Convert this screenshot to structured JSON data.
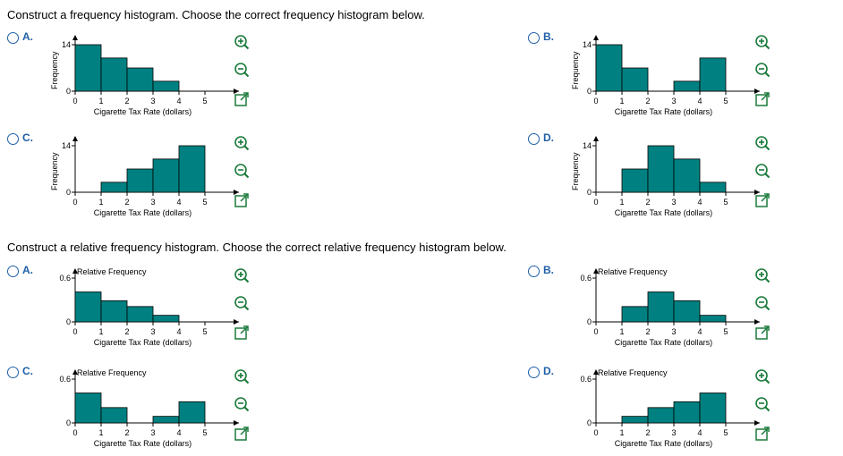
{
  "q1": {
    "prompt": "Construct a frequency histogram. Choose the correct frequency histogram below.",
    "options": [
      {
        "letter": "A.",
        "values": [
          14,
          10,
          7,
          3,
          0
        ]
      },
      {
        "letter": "B.",
        "values": [
          14,
          7,
          0,
          3,
          10
        ]
      },
      {
        "letter": "C.",
        "values": [
          0,
          3,
          7,
          10,
          14
        ]
      },
      {
        "letter": "D.",
        "values": [
          0,
          7,
          14,
          10,
          3
        ]
      }
    ],
    "y_label": "Frequency",
    "y_tick_top": "14",
    "y_tick_bottom": "0"
  },
  "q2": {
    "prompt": "Construct a relative frequency histogram. Choose the correct relative frequency histogram below.",
    "options": [
      {
        "letter": "A.",
        "values": [
          0.41,
          0.29,
          0.21,
          0.09,
          0
        ]
      },
      {
        "letter": "B.",
        "values": [
          0,
          0.21,
          0.41,
          0.29,
          0.09
        ]
      },
      {
        "letter": "C.",
        "values": [
          0.41,
          0.21,
          0,
          0.09,
          0.29
        ]
      },
      {
        "letter": "D.",
        "values": [
          0,
          0.09,
          0.21,
          0.29,
          0.41
        ]
      }
    ],
    "y_label": "Relative Frequency",
    "y_tick_top": "0.6",
    "y_tick_bottom": "0"
  },
  "x_label": "Cigarette Tax Rate (dollars)",
  "x_ticks": [
    "0",
    "1",
    "2",
    "3",
    "4",
    "5"
  ],
  "bar_color": "#008080",
  "accent_color": "#1f5fa8",
  "icons": [
    "zoom-in-icon",
    "zoom-out-icon",
    "expand-icon"
  ]
}
